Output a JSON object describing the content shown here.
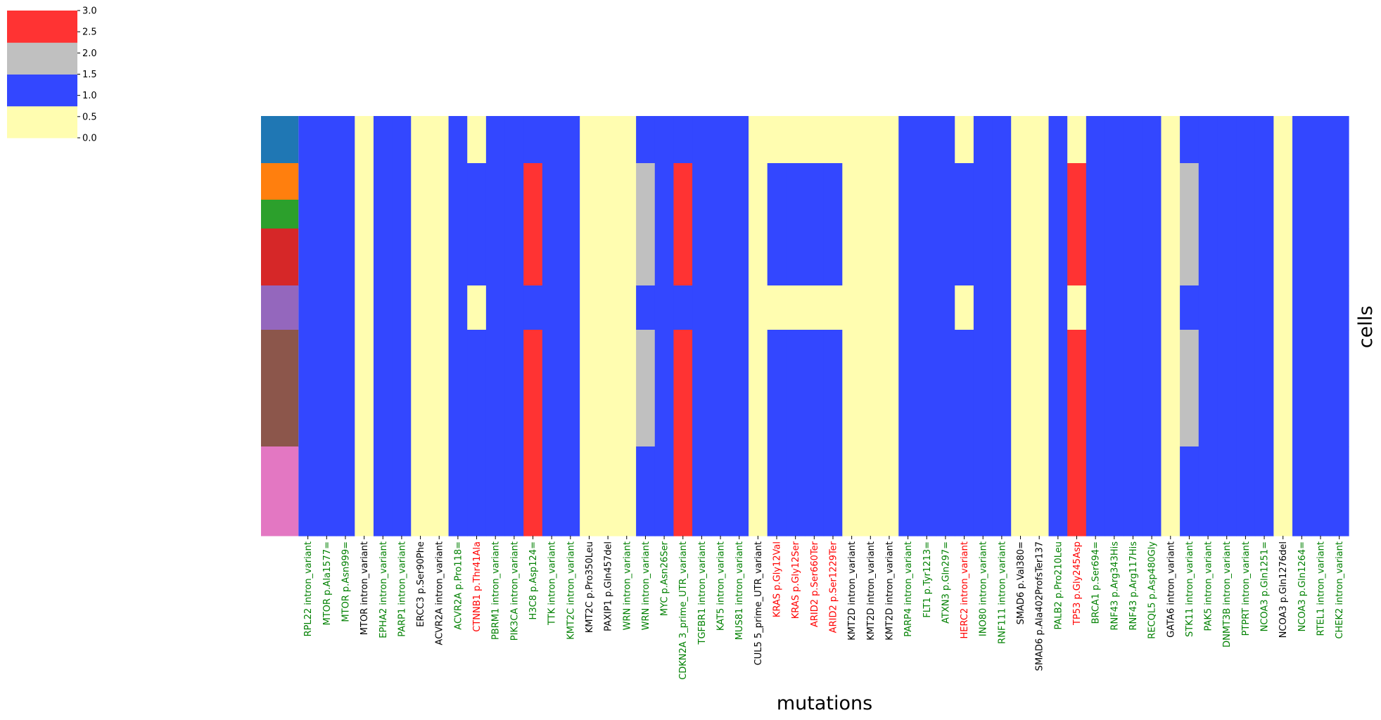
{
  "chart_data": {
    "type": "heatmap",
    "xlabel": "mutations",
    "ylabel": "cells",
    "colorbar": {
      "ticks": [
        "0.0",
        "0.5",
        "1.0",
        "1.5",
        "2.0",
        "2.5",
        "3.0"
      ],
      "range": [
        0,
        3
      ],
      "levels": [
        {
          "value": 0,
          "color": "#fffdb0"
        },
        {
          "value": 1,
          "color": "#3347ff"
        },
        {
          "value": 2,
          "color": "#c0c0c0"
        },
        {
          "value": 3,
          "color": "#ff3333"
        }
      ]
    },
    "label_colors": {
      "green": "#008000",
      "red": "#ff0000",
      "black": "#000000"
    },
    "cell_groups": [
      {
        "color": "#1f77b4",
        "rows": 1
      },
      {
        "color": "#ff7f0e",
        "rows": 1
      },
      {
        "color": "#2ca02c",
        "rows": 1
      },
      {
        "color": "#d62728",
        "rows": 1
      },
      {
        "color": "#9467bd",
        "rows": 1
      },
      {
        "color": "#8c564b",
        "rows": 1
      },
      {
        "color": "#e377c2",
        "rows": 1
      }
    ],
    "mutations": [
      {
        "label": "RPL22 intron_variant",
        "color": "green"
      },
      {
        "label": "MTOR p.Ala1577=",
        "color": "green"
      },
      {
        "label": "MTOR p.Asn999=",
        "color": "green"
      },
      {
        "label": "MTOR intron_variant",
        "color": "black"
      },
      {
        "label": "EPHA2 intron_variant",
        "color": "green"
      },
      {
        "label": "PARP1 intron_variant",
        "color": "green"
      },
      {
        "label": "ERCC3 p.Ser90Phe",
        "color": "black"
      },
      {
        "label": "ACVR2A intron_variant",
        "color": "black"
      },
      {
        "label": "ACVR2A p.Pro118=",
        "color": "green"
      },
      {
        "label": "CTNNB1 p.Thr41Ala",
        "color": "red"
      },
      {
        "label": "PBRM1 intron_variant",
        "color": "green"
      },
      {
        "label": "PIK3CA intron_variant",
        "color": "green"
      },
      {
        "label": "H3C8 p.Asp124=",
        "color": "green"
      },
      {
        "label": "TTK intron_variant",
        "color": "green"
      },
      {
        "label": "KMT2C intron_variant",
        "color": "green"
      },
      {
        "label": "KMT2C p.Pro350Leu",
        "color": "black"
      },
      {
        "label": "PAXIP1 p.Gln457del",
        "color": "black"
      },
      {
        "label": "WRN intron_variant",
        "color": "green"
      },
      {
        "label": "WRN intron_variant",
        "color": "green"
      },
      {
        "label": "MYC p.Asn26Ser",
        "color": "green"
      },
      {
        "label": "CDKN2A 3_prime_UTR_variant",
        "color": "green"
      },
      {
        "label": "TGFBR1 intron_variant",
        "color": "green"
      },
      {
        "label": "KAT5 intron_variant",
        "color": "green"
      },
      {
        "label": "MUS81 intron_variant",
        "color": "green"
      },
      {
        "label": "CUL5 5_prime_UTR_variant",
        "color": "black"
      },
      {
        "label": "KRAS p.Gly12Val",
        "color": "red"
      },
      {
        "label": "KRAS p.Gly12Ser",
        "color": "red"
      },
      {
        "label": "ARID2 p.Ser660Ter",
        "color": "red"
      },
      {
        "label": "ARID2 p.Ser1229Ter",
        "color": "red"
      },
      {
        "label": "KMT2D intron_variant",
        "color": "black"
      },
      {
        "label": "KMT2D intron_variant",
        "color": "black"
      },
      {
        "label": "KMT2D intron_variant",
        "color": "black"
      },
      {
        "label": "PARP4 intron_variant",
        "color": "green"
      },
      {
        "label": "FLT1 p.Tyr1213=",
        "color": "green"
      },
      {
        "label": "ATXN3 p.Gln297=",
        "color": "green"
      },
      {
        "label": "HERC2 intron_variant",
        "color": "red"
      },
      {
        "label": "INO80 intron_variant",
        "color": "green"
      },
      {
        "label": "RNF111 intron_variant",
        "color": "green"
      },
      {
        "label": "SMAD6 p.Val380=",
        "color": "black"
      },
      {
        "label": "SMAD6 p.Ala402ProfsTer137",
        "color": "black"
      },
      {
        "label": "PALB2 p.Pro210Leu",
        "color": "green"
      },
      {
        "label": "TP53 p.Gly245Asp",
        "color": "red"
      },
      {
        "label": "BRCA1 p.Ser694=",
        "color": "green"
      },
      {
        "label": "RNF43 p.Arg343His",
        "color": "green"
      },
      {
        "label": "RNF43 p.Arg117His",
        "color": "green"
      },
      {
        "label": "RECQL5 p.Asp480Gly",
        "color": "green"
      },
      {
        "label": "GATA6 intron_variant",
        "color": "black"
      },
      {
        "label": "STK11 intron_variant",
        "color": "green"
      },
      {
        "label": "PAK5 intron_variant",
        "color": "green"
      },
      {
        "label": "DNMT3B intron_variant",
        "color": "green"
      },
      {
        "label": "PTPRT intron_variant",
        "color": "green"
      },
      {
        "label": "NCOA3 p.Gln1251=",
        "color": "green"
      },
      {
        "label": "NCOA3 p.Gln1276del",
        "color": "black"
      },
      {
        "label": "NCOA3 p.Gln1264=",
        "color": "green"
      },
      {
        "label": "RTEL1 intron_variant",
        "color": "green"
      },
      {
        "label": "CHEK2 intron_variant",
        "color": "green"
      }
    ],
    "values": [
      [
        1,
        1,
        1,
        0,
        1,
        1,
        0,
        0,
        1,
        0,
        1,
        1,
        1,
        1,
        1,
        0,
        0,
        0,
        1,
        1,
        1,
        1,
        1,
        1,
        0,
        0,
        0,
        0,
        0,
        0,
        0,
        0,
        1,
        1,
        1,
        0,
        1,
        1,
        0,
        0,
        1,
        0,
        1,
        1,
        1,
        1,
        0,
        1,
        1,
        1,
        1,
        1,
        0,
        1,
        1,
        1
      ],
      [
        1,
        1,
        1,
        0,
        1,
        1,
        0,
        0,
        1,
        1,
        1,
        1,
        3,
        1,
        1,
        0,
        0,
        0,
        2,
        1,
        3,
        1,
        1,
        1,
        0,
        1,
        1,
        1,
        1,
        0,
        0,
        0,
        1,
        1,
        1,
        1,
        1,
        1,
        0,
        0,
        1,
        3,
        1,
        1,
        1,
        1,
        0,
        2,
        1,
        1,
        1,
        1,
        0,
        1,
        1,
        1
      ],
      [
        1,
        1,
        1,
        0,
        1,
        1,
        0,
        0,
        1,
        1,
        1,
        1,
        3,
        1,
        1,
        0,
        0,
        0,
        2,
        1,
        3,
        1,
        1,
        1,
        0,
        1,
        1,
        1,
        1,
        0,
        0,
        0,
        1,
        1,
        1,
        1,
        1,
        1,
        0,
        0,
        1,
        3,
        1,
        1,
        1,
        1,
        0,
        2,
        1,
        1,
        1,
        1,
        0,
        1,
        1,
        1
      ],
      [
        1,
        1,
        1,
        0,
        1,
        1,
        0,
        0,
        1,
        1,
        1,
        1,
        3,
        1,
        1,
        0,
        0,
        0,
        2,
        1,
        3,
        1,
        1,
        1,
        0,
        1,
        1,
        1,
        1,
        0,
        0,
        0,
        1,
        1,
        1,
        1,
        1,
        1,
        0,
        0,
        1,
        3,
        1,
        1,
        1,
        1,
        0,
        2,
        1,
        1,
        1,
        1,
        0,
        1,
        1,
        1
      ],
      [
        1,
        1,
        1,
        0,
        1,
        1,
        0,
        0,
        1,
        0,
        1,
        1,
        1,
        1,
        1,
        0,
        0,
        0,
        1,
        1,
        1,
        1,
        1,
        1,
        0,
        0,
        0,
        0,
        0,
        0,
        0,
        0,
        1,
        1,
        1,
        0,
        1,
        1,
        0,
        0,
        1,
        0,
        1,
        1,
        1,
        1,
        0,
        1,
        1,
        1,
        1,
        1,
        0,
        1,
        1,
        1
      ],
      [
        1,
        1,
        1,
        0,
        1,
        1,
        0,
        0,
        1,
        1,
        1,
        1,
        3,
        1,
        1,
        0,
        0,
        0,
        2,
        1,
        3,
        1,
        1,
        1,
        0,
        1,
        1,
        1,
        1,
        0,
        0,
        0,
        1,
        1,
        1,
        1,
        1,
        1,
        0,
        0,
        1,
        3,
        1,
        1,
        1,
        1,
        0,
        2,
        1,
        1,
        1,
        1,
        0,
        1,
        1,
        1
      ],
      [
        1,
        1,
        1,
        0,
        1,
        1,
        0,
        0,
        1,
        1,
        1,
        1,
        3,
        1,
        1,
        0,
        0,
        0,
        1,
        1,
        3,
        1,
        1,
        1,
        0,
        1,
        1,
        1,
        1,
        0,
        0,
        0,
        1,
        1,
        1,
        1,
        1,
        1,
        0,
        0,
        1,
        3,
        1,
        1,
        1,
        1,
        0,
        1,
        1,
        1,
        1,
        1,
        0,
        1,
        1,
        1
      ]
    ]
  }
}
